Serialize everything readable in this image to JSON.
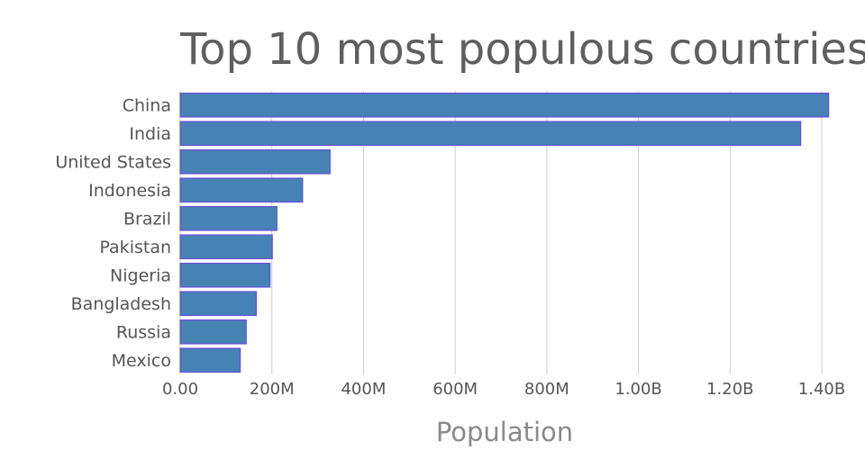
{
  "chart_data": {
    "type": "bar",
    "orientation": "horizontal",
    "title": "Top 10 most populous countries",
    "xlabel": "Population",
    "ylabel": "",
    "categories": [
      "China",
      "India",
      "United States",
      "Indonesia",
      "Brazil",
      "Pakistan",
      "Nigeria",
      "Bangladesh",
      "Russia",
      "Mexico"
    ],
    "values": [
      1415000000,
      1354000000,
      327000000,
      267000000,
      211000000,
      201000000,
      196000000,
      166000000,
      144000000,
      131000000
    ],
    "xlim": [
      0,
      1400000000
    ],
    "x_ticks": [
      {
        "value": 0,
        "label": "0.00"
      },
      {
        "value": 200000000,
        "label": "200M"
      },
      {
        "value": 400000000,
        "label": "400M"
      },
      {
        "value": 600000000,
        "label": "600M"
      },
      {
        "value": 800000000,
        "label": "800M"
      },
      {
        "value": 1000000000,
        "label": "1.00B"
      },
      {
        "value": 1200000000,
        "label": "1.20B"
      },
      {
        "value": 1400000000,
        "label": "1.40B"
      }
    ],
    "grid": true,
    "colors": {
      "bar_fill": "#4682b4",
      "bar_outline": "#6a4fd6"
    }
  }
}
